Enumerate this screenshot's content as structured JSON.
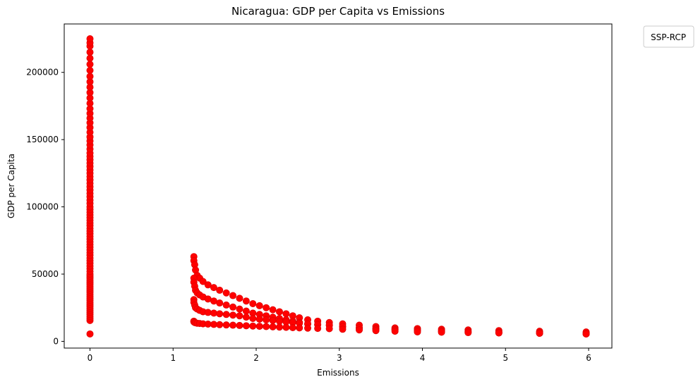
{
  "chart_data": {
    "type": "scatter",
    "title": "Nicaragua: GDP per Capita vs Emissions",
    "xlabel": "Emissions",
    "ylabel": "GDP per Capita",
    "xlim": [
      -0.31,
      6.28
    ],
    "ylim": [
      -5000,
      236000
    ],
    "xticks": [
      0,
      1,
      2,
      3,
      4,
      5,
      6
    ],
    "xtick_labels": [
      "0",
      "1",
      "2",
      "3",
      "4",
      "5",
      "6"
    ],
    "yticks": [
      0,
      50000,
      100000,
      150000,
      200000
    ],
    "ytick_labels": [
      "0",
      "50000",
      "100000",
      "150000",
      "200000"
    ],
    "grid": false,
    "legend": {
      "title": "SSP-RCP",
      "placement": "outside-top-right",
      "entries": []
    },
    "marker_color": "#ff0000",
    "marker_edge_color": "#e00000",
    "series": [
      {
        "x": [
          0,
          0,
          0,
          0,
          0,
          0,
          0,
          0,
          0,
          0,
          0,
          0,
          0,
          0,
          0,
          0,
          0,
          0,
          0,
          0,
          0,
          0,
          0,
          0,
          0,
          0,
          0,
          0,
          0,
          0,
          0,
          0,
          0,
          0,
          0,
          0,
          0,
          0,
          0,
          0,
          0,
          0,
          0,
          0,
          0,
          0,
          0,
          0,
          0,
          0,
          0,
          0,
          0,
          0,
          0,
          0,
          0,
          0,
          0,
          0,
          0,
          0,
          0,
          0,
          0,
          0,
          0,
          0,
          0,
          0,
          0,
          0,
          0,
          0,
          0,
          0,
          0,
          0,
          0,
          0,
          0,
          0,
          0,
          0,
          0,
          0,
          0,
          0,
          0,
          1.25,
          1.25,
          1.26,
          1.27,
          1.29,
          1.32,
          1.36,
          1.42,
          1.49,
          1.56,
          1.64,
          1.72,
          1.8,
          1.88,
          1.96,
          2.04,
          2.12,
          2.2,
          2.28,
          2.36,
          2.44,
          2.52,
          2.62,
          2.74,
          2.88,
          3.04,
          3.24,
          3.44,
          3.67,
          3.94,
          4.23,
          4.55,
          4.92,
          5.41,
          5.97,
          1.25,
          1.25,
          1.26,
          1.27,
          1.29,
          1.32,
          1.36,
          1.42,
          1.49,
          1.56,
          1.64,
          1.72,
          1.8,
          1.88,
          1.96,
          2.04,
          2.12,
          2.2,
          2.28,
          2.36,
          2.44,
          2.52,
          2.62,
          2.74,
          2.88,
          3.04,
          3.24,
          3.44,
          3.67,
          3.94,
          4.23,
          4.55,
          4.92,
          5.41,
          5.97,
          1.25,
          1.25,
          1.26,
          1.27,
          1.29,
          1.32,
          1.36,
          1.42,
          1.49,
          1.56,
          1.64,
          1.72,
          1.8,
          1.88,
          1.96,
          2.04,
          2.12,
          2.2,
          2.28,
          2.36,
          2.44,
          2.52,
          2.62,
          2.74,
          2.88,
          3.04,
          3.24,
          3.44,
          3.67,
          3.94,
          4.23,
          4.55,
          4.92,
          5.41,
          5.97,
          1.25,
          1.25,
          1.26,
          1.27,
          1.29,
          1.32,
          1.36,
          1.42,
          1.49,
          1.56,
          1.64,
          1.72,
          1.8,
          1.88,
          1.96,
          2.04,
          2.12,
          2.2,
          2.28,
          2.36,
          2.44,
          2.52,
          2.62,
          2.74,
          2.88,
          3.04,
          3.24,
          3.44,
          3.67,
          3.94,
          4.23,
          4.55,
          4.92,
          5.41,
          5.97
        ],
        "y": [
          5500,
          15500,
          17000,
          18500,
          20000,
          21500,
          23000,
          24500,
          26000,
          27500,
          29000,
          30500,
          32000,
          33500,
          35000,
          36500,
          38000,
          39500,
          41000,
          42500,
          44000,
          45500,
          47000,
          48500,
          50000,
          52000,
          54000,
          56000,
          58000,
          60000,
          62000,
          64000,
          66000,
          68000,
          70000,
          72000,
          74000,
          76000,
          78000,
          80000,
          82000,
          84000,
          86000,
          88000,
          90000,
          92000,
          94000,
          96000,
          98000,
          100000,
          102500,
          105000,
          107500,
          110000,
          112500,
          115000,
          117500,
          120000,
          122500,
          125000,
          127500,
          130000,
          132500,
          135000,
          137500,
          140000,
          143000,
          146000,
          149000,
          152000,
          155500,
          159000,
          162500,
          166000,
          169500,
          173000,
          177000,
          181000,
          185000,
          189000,
          193000,
          197000,
          201500,
          206000,
          210500,
          215000,
          219500,
          222000,
          225000,
          63000,
          60000,
          57000,
          53000,
          49000,
          47000,
          44500,
          42000,
          40000,
          38000,
          36000,
          34000,
          32000,
          30000,
          28000,
          26500,
          25000,
          23500,
          22000,
          20500,
          19000,
          17500,
          16000,
          15000,
          14000,
          13000,
          12000,
          11000,
          10000,
          9500,
          9000,
          8500,
          8000,
          7500,
          7000,
          47000,
          44000,
          41000,
          38000,
          36000,
          34500,
          33000,
          31500,
          30000,
          28500,
          27000,
          25500,
          24000,
          22500,
          21000,
          20000,
          19000,
          18000,
          17000,
          16000,
          15000,
          14000,
          13000,
          12500,
          12000,
          11000,
          10000,
          9500,
          9000,
          8500,
          8000,
          7500,
          7000,
          6500,
          6000,
          31000,
          29000,
          27000,
          25000,
          24000,
          23000,
          22000,
          21500,
          21000,
          20500,
          20000,
          19500,
          19000,
          18000,
          17000,
          16500,
          16000,
          15500,
          15000,
          14500,
          14000,
          13500,
          13000,
          12500,
          12000,
          11000,
          10000,
          9000,
          8500,
          8000,
          7500,
          7000,
          6500,
          6000,
          5500,
          15000,
          14500,
          14000,
          13800,
          13500,
          13300,
          13000,
          12800,
          12600,
          12400,
          12200,
          12000,
          11800,
          11600,
          11400,
          11200,
          11000,
          10800,
          10600,
          10400,
          10200,
          10000,
          9800,
          9600,
          9400,
          9000,
          8500,
          8000,
          7500,
          7000,
          6800,
          6500,
          6200,
          6000,
          5500
        ]
      }
    ]
  }
}
